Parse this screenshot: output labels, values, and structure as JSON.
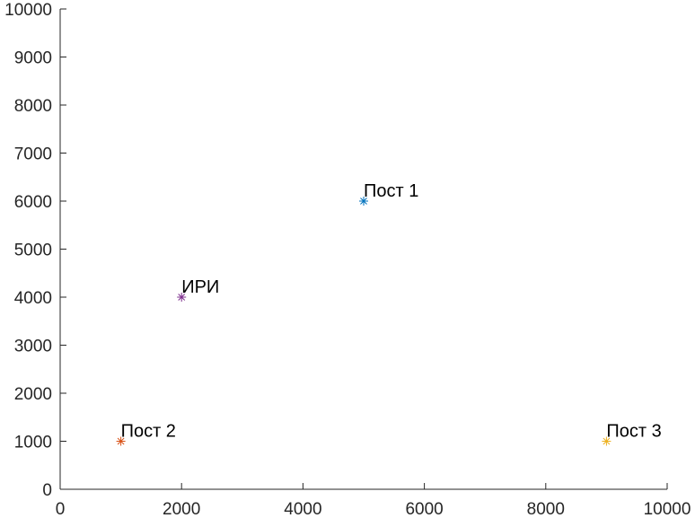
{
  "chart_data": {
    "type": "scatter",
    "title": "",
    "xlabel": "",
    "ylabel": "",
    "xlim": [
      0,
      10000
    ],
    "ylim": [
      0,
      10000
    ],
    "x_ticks": [
      "0",
      "2000",
      "4000",
      "6000",
      "8000",
      "10000"
    ],
    "y_ticks": [
      "0",
      "1000",
      "2000",
      "3000",
      "4000",
      "5000",
      "6000",
      "7000",
      "8000",
      "9000",
      "10000"
    ],
    "grid": false,
    "marker": "asterisk",
    "points": [
      {
        "label": "Пост 1",
        "x": 5000,
        "y": 6000,
        "color": "#0072BD"
      },
      {
        "label": "Пост 2",
        "x": 1000,
        "y": 1000,
        "color": "#D95319"
      },
      {
        "label": "Пост 3",
        "x": 9000,
        "y": 1000,
        "color": "#EDB120"
      },
      {
        "label": "ИРИ",
        "x": 2000,
        "y": 4000,
        "color": "#7E2F8E"
      }
    ]
  }
}
